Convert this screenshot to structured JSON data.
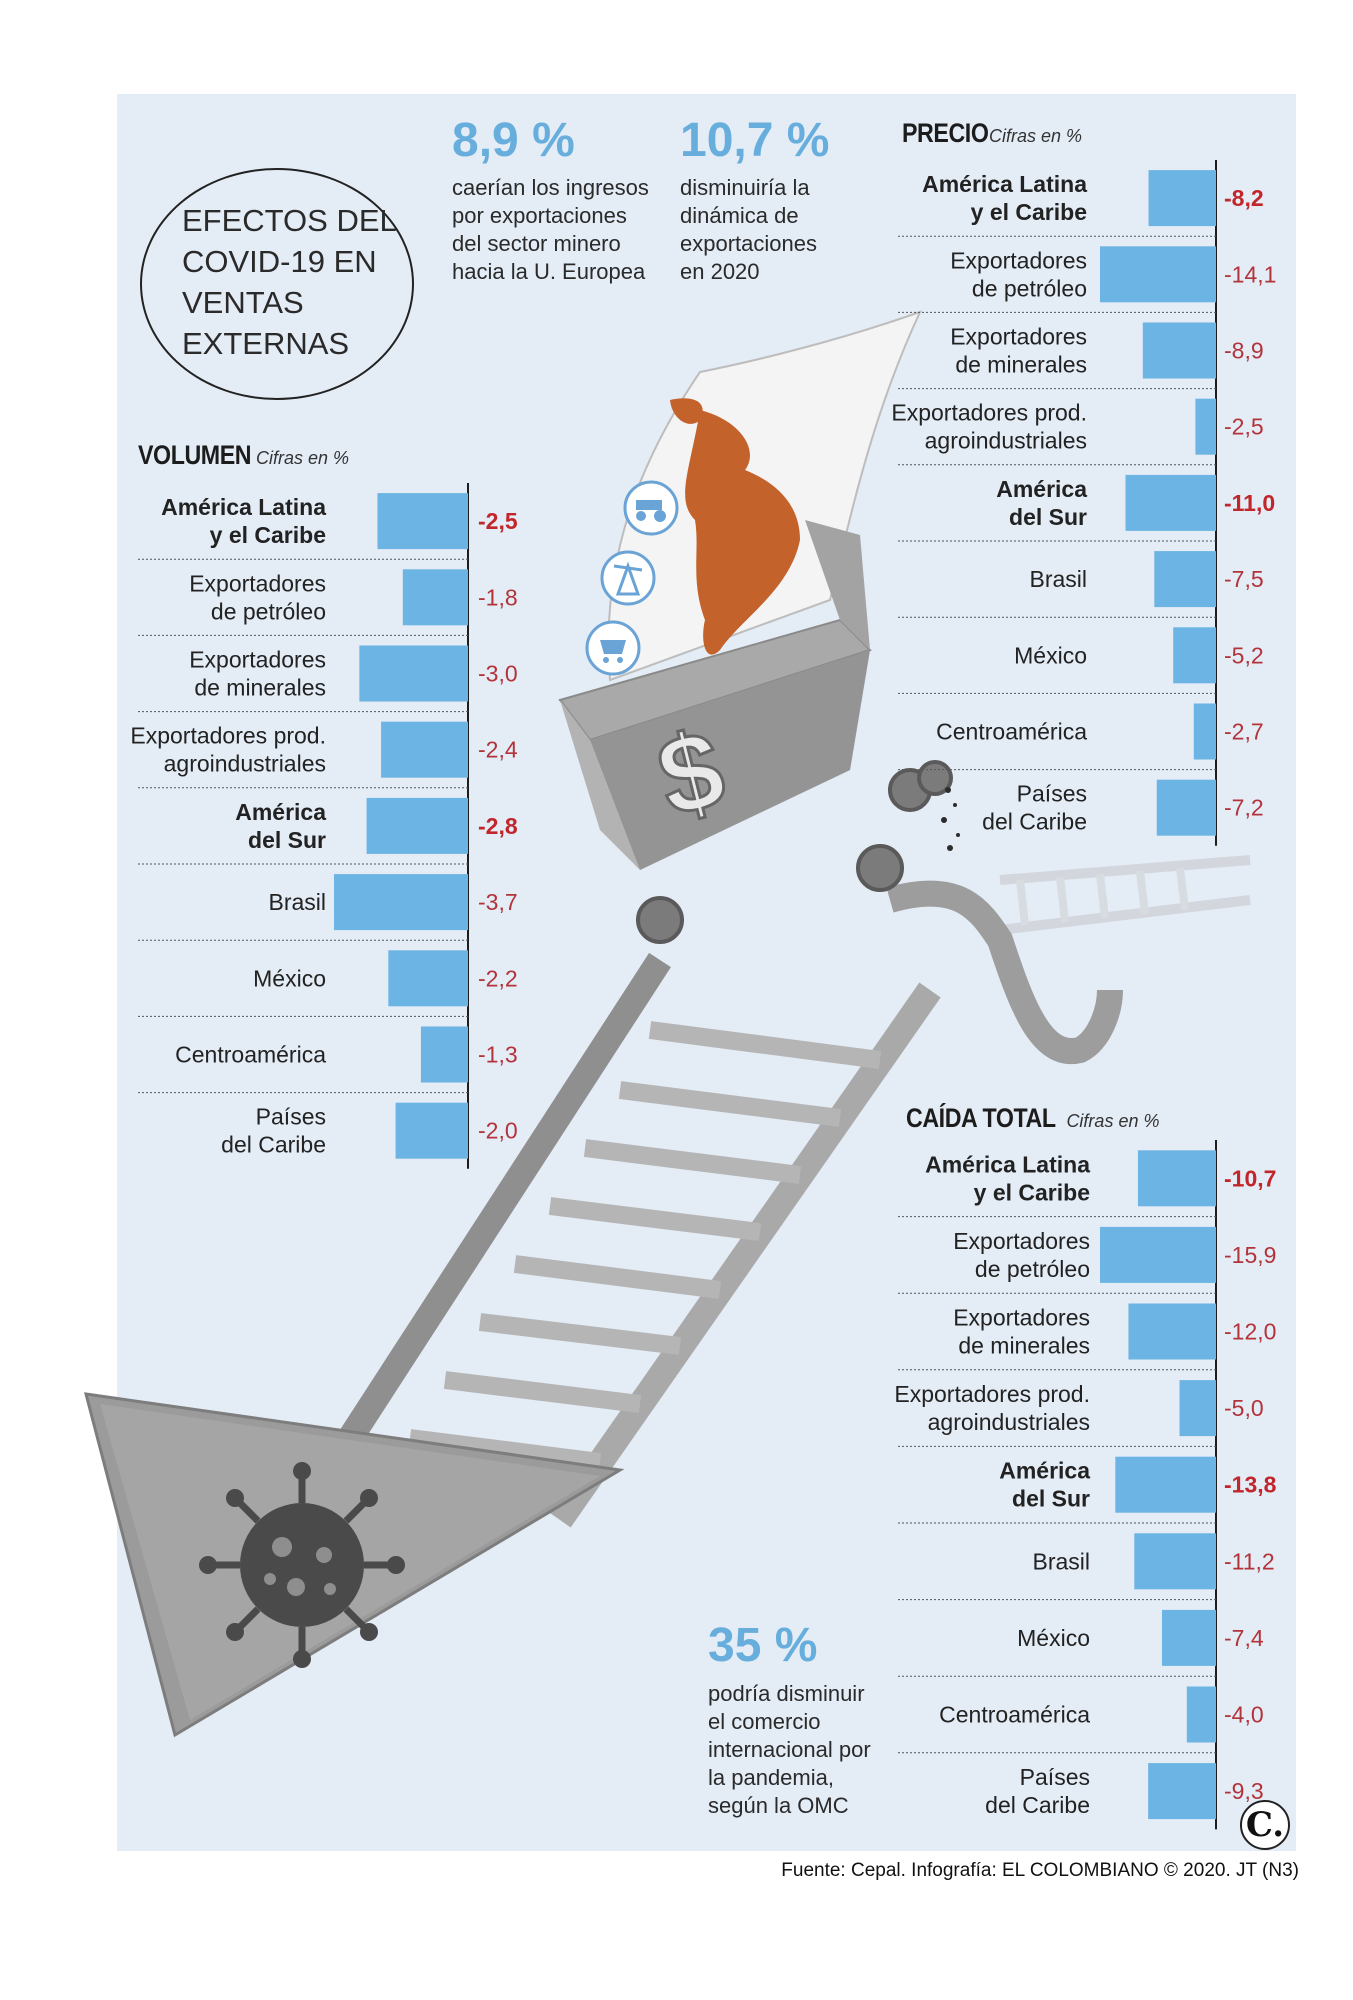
{
  "title": "EFECTOS DEL COVID-19 EN VENTAS EXTERNAS",
  "stats": [
    {
      "value": "8,9 %",
      "text": "caerían los ingresos\npor exportaciones\ndel sector minero\nhacia la U. Europea"
    },
    {
      "value": "10,7 %",
      "text": "disminuiría la\ndinámica de\nexportaciones\nen 2020"
    },
    {
      "value": "35 %",
      "text": "podría disminuir\nel comercio\ninternacional por\nla pandemia,\nsegún la OMC"
    }
  ],
  "colors": {
    "bar": "#6cb4e4",
    "negative_bold": "#c1262b",
    "negative": "#b3333a",
    "panel": "#e4ecf6",
    "stat": "#67aedd"
  },
  "icons": [
    "tractor-icon",
    "oil-pump-icon",
    "mine-cart-icon",
    "virus-icon",
    "dollar-sign-icon"
  ],
  "source": "Fuente: Cepal. Infografía: EL COLOMBIANO © 2020. JT (N3)",
  "logo": "C.",
  "chart_data": [
    {
      "type": "bar",
      "title": "VOLUMEN",
      "unit": "Cifras en %",
      "categories": [
        "América Latina\ny el Caribe",
        "Exportadores\nde petróleo",
        "Exportadores\nde minerales",
        "Exportadores prod.\nagroindustriales",
        "América\ndel Sur",
        "Brasil",
        "México",
        "Centroamérica",
        "Países\ndel Caribe"
      ],
      "values": [
        -2.5,
        -1.8,
        -3.0,
        -2.4,
        -2.8,
        -3.7,
        -2.2,
        -1.3,
        -2.0
      ],
      "labels": [
        "-2,5",
        "-1,8",
        "-3,0",
        "-2,4",
        "-2,8",
        "-3,7",
        "-2,2",
        "-1,3",
        "-2,0"
      ],
      "bold": [
        true,
        false,
        false,
        false,
        true,
        false,
        false,
        false,
        false
      ]
    },
    {
      "type": "bar",
      "title": "PRECIO",
      "unit": "Cifras en %",
      "categories": [
        "América Latina\ny el Caribe",
        "Exportadores\nde petróleo",
        "Exportadores\nde minerales",
        "Exportadores prod.\nagroindustriales",
        "América\ndel Sur",
        "Brasil",
        "México",
        "Centroamérica",
        "Países\ndel Caribe"
      ],
      "values": [
        -8.2,
        -14.1,
        -8.9,
        -2.5,
        -11.0,
        -7.5,
        -5.2,
        -2.7,
        -7.2
      ],
      "labels": [
        "-8,2",
        "-14,1",
        "-8,9",
        "-2,5",
        "-11,0",
        "-7,5",
        "-5,2",
        "-2,7",
        "-7,2"
      ],
      "bold": [
        true,
        false,
        false,
        false,
        true,
        false,
        false,
        false,
        false
      ]
    },
    {
      "type": "bar",
      "title": "CAÍDA TOTAL",
      "unit": "Cifras en %",
      "categories": [
        "América Latina\ny el Caribe",
        "Exportadores\nde petróleo",
        "Exportadores\nde minerales",
        "Exportadores prod.\nagroindustriales",
        "América\ndel Sur",
        "Brasil",
        "México",
        "Centroamérica",
        "Países\ndel Caribe"
      ],
      "values": [
        -10.7,
        -15.9,
        -12.0,
        -5.0,
        -13.8,
        -11.2,
        -7.4,
        -4.0,
        -9.3
      ],
      "labels": [
        "-10,7",
        "-15,9",
        "-12,0",
        "-5,0",
        "-13,8",
        "-11,2",
        "-7,4",
        "-4,0",
        "-9,3"
      ],
      "bold": [
        true,
        false,
        false,
        false,
        true,
        false,
        false,
        false,
        false
      ]
    }
  ]
}
